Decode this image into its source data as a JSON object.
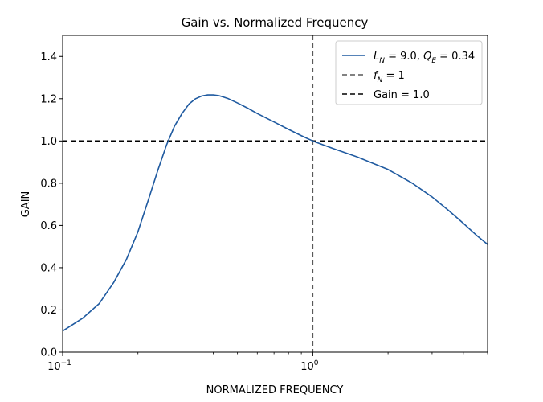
{
  "chart_data": {
    "type": "line",
    "title": "Gain vs. Normalized Frequency",
    "xlabel": "NORMALIZED FREQUENCY",
    "ylabel": "GAIN",
    "xscale": "log",
    "xlim": [
      0.1,
      5.0
    ],
    "ylim": [
      0.0,
      1.5
    ],
    "grid": false,
    "legend_position": "top-right",
    "x_ticks": [
      {
        "value": 0.1,
        "base": "10",
        "exp": "−1"
      },
      {
        "value": 1.0,
        "base": "10",
        "exp": "0"
      }
    ],
    "y_ticks": [
      {
        "value": 0.0,
        "label": "0.0"
      },
      {
        "value": 0.2,
        "label": "0.2"
      },
      {
        "value": 0.4,
        "label": "0.4"
      },
      {
        "value": 0.6,
        "label": "0.6"
      },
      {
        "value": 0.8,
        "label": "0.8"
      },
      {
        "value": 1.0,
        "label": "1.0"
      },
      {
        "value": 1.2,
        "label": "1.2"
      },
      {
        "value": 1.4,
        "label": "1.4"
      }
    ],
    "series": [
      {
        "name_parts": [
          {
            "text": "L",
            "style": "italic"
          },
          {
            "text": "N",
            "style": "sub-italic"
          },
          {
            "text": " = 9.0, ",
            "style": "normal"
          },
          {
            "text": "Q",
            "style": "italic"
          },
          {
            "text": "E",
            "style": "sub-italic"
          },
          {
            "text": " = 0.34",
            "style": "normal"
          }
        ],
        "color": "#1f5aa0",
        "linestyle": "solid",
        "x": [
          0.1,
          0.12,
          0.14,
          0.16,
          0.18,
          0.2,
          0.22,
          0.24,
          0.26,
          0.28,
          0.3,
          0.32,
          0.34,
          0.36,
          0.38,
          0.4,
          0.42,
          0.44,
          0.46,
          0.5,
          0.55,
          0.6,
          0.7,
          0.8,
          0.9,
          1.0,
          1.2,
          1.5,
          2.0,
          2.5,
          3.0,
          3.5,
          4.0,
          4.5,
          5.0
        ],
        "y": [
          0.1,
          0.16,
          0.23,
          0.33,
          0.44,
          0.57,
          0.72,
          0.86,
          0.98,
          1.07,
          1.13,
          1.175,
          1.2,
          1.213,
          1.218,
          1.218,
          1.215,
          1.208,
          1.2,
          1.18,
          1.155,
          1.13,
          1.09,
          1.055,
          1.025,
          1.0,
          0.965,
          0.925,
          0.865,
          0.8,
          0.735,
          0.67,
          0.61,
          0.555,
          0.51
        ]
      },
      {
        "name_parts": [
          {
            "text": "f",
            "style": "italic"
          },
          {
            "text": "N",
            "style": "sub-italic"
          },
          {
            "text": " = 1",
            "style": "normal"
          }
        ],
        "color": "#595959",
        "linestyle": "dashed",
        "orientation": "vertical",
        "x_value": 1.0
      },
      {
        "name_parts": [
          {
            "text": "Gain = 1.0",
            "style": "normal"
          }
        ],
        "color": "#000000",
        "linestyle": "dashed",
        "orientation": "horizontal",
        "y_value": 1.0
      }
    ]
  }
}
